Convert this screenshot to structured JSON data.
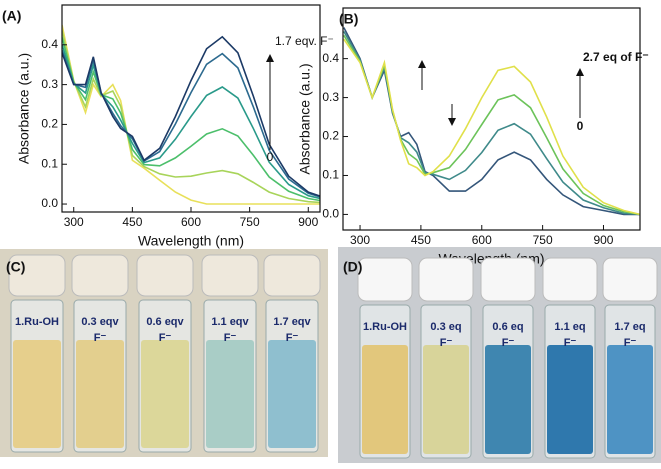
{
  "chart_data": [
    {
      "type": "line",
      "panel": "(A)",
      "xlabel": "Wavelength (nm)",
      "ylabel": "Absorbance (a.u.)",
      "x": [
        270,
        300,
        330,
        350,
        370,
        400,
        420,
        450,
        480,
        520,
        560,
        600,
        640,
        680,
        720,
        760,
        800,
        850,
        900,
        930
      ],
      "series": [
        {
          "color": "#e8e05a",
          "values": [
            0.45,
            0.31,
            0.23,
            0.3,
            0.27,
            0.3,
            0.26,
            0.11,
            0.09,
            0.06,
            0.03,
            0.01,
            0,
            0,
            0,
            0,
            0,
            0,
            0,
            0
          ]
        },
        {
          "color": "#a8d45a",
          "values": [
            0.436,
            0.308,
            0.244,
            0.314,
            0.272,
            0.284,
            0.246,
            0.122,
            0.094,
            0.076,
            0.068,
            0.07,
            0.078,
            0.084,
            0.076,
            0.054,
            0.03,
            0.014,
            0.006,
            0.004
          ]
        },
        {
          "color": "#4cbf6b",
          "values": [
            0.419,
            0.306,
            0.262,
            0.332,
            0.275,
            0.264,
            0.229,
            0.137,
            0.099,
            0.096,
            0.116,
            0.145,
            0.176,
            0.189,
            0.171,
            0.122,
            0.068,
            0.032,
            0.014,
            0.009
          ]
        },
        {
          "color": "#2a9a8a",
          "values": [
            0.401,
            0.303,
            0.279,
            0.349,
            0.277,
            0.244,
            0.211,
            0.152,
            0.104,
            0.116,
            0.163,
            0.22,
            0.273,
            0.294,
            0.266,
            0.189,
            0.105,
            0.049,
            0.021,
            0.014
          ]
        },
        {
          "color": "#2c6a8f",
          "values": [
            0.387,
            0.301,
            0.293,
            0.363,
            0.279,
            0.228,
            0.197,
            0.164,
            0.108,
            0.132,
            0.201,
            0.28,
            0.351,
            0.378,
            0.342,
            0.243,
            0.135,
            0.063,
            0.027,
            0.018
          ]
        },
        {
          "color": "#1c3a66",
          "values": [
            0.38,
            0.3,
            0.3,
            0.37,
            0.28,
            0.22,
            0.19,
            0.17,
            0.11,
            0.14,
            0.22,
            0.31,
            0.39,
            0.42,
            0.38,
            0.27,
            0.15,
            0.07,
            0.03,
            0.02
          ]
        }
      ],
      "xlim": [
        270,
        930
      ],
      "xticks": [
        300,
        450,
        600,
        750,
        900
      ],
      "ylim": [
        -0.02,
        0.5
      ],
      "yticks": [
        {
          "value": 0,
          "label": "0.0"
        },
        0.1,
        0.2,
        0.3,
        0.4
      ],
      "annotations": [
        "1.7 eqv. F⁻",
        "0"
      ]
    },
    {
      "type": "line",
      "panel": "(B)",
      "xlabel": "Wavelength (nm)",
      "ylabel": "Absorbance (a.u.)",
      "x": [
        260,
        300,
        330,
        360,
        380,
        400,
        420,
        440,
        460,
        480,
        520,
        560,
        600,
        640,
        680,
        720,
        760,
        800,
        850,
        900,
        950,
        990
      ],
      "series": [
        {
          "color": "#34567a",
          "values": [
            0.48,
            0.4,
            0.3,
            0.37,
            0.26,
            0.2,
            0.21,
            0.18,
            0.11,
            0.1,
            0.06,
            0.06,
            0.09,
            0.14,
            0.16,
            0.14,
            0.09,
            0.05,
            0.02,
            0.01,
            0,
            0
          ]
        },
        {
          "color": "#3f8a8a",
          "values": [
            0.47,
            0.397,
            0.3,
            0.377,
            0.263,
            0.197,
            0.184,
            0.16,
            0.107,
            0.103,
            0.09,
            0.113,
            0.159,
            0.216,
            0.233,
            0.206,
            0.143,
            0.083,
            0.037,
            0.017,
            0.003,
            0
          ]
        },
        {
          "color": "#6cc35a",
          "values": [
            0.46,
            0.393,
            0.3,
            0.383,
            0.267,
            0.193,
            0.156,
            0.14,
            0.103,
            0.107,
            0.12,
            0.167,
            0.231,
            0.294,
            0.307,
            0.274,
            0.197,
            0.117,
            0.054,
            0.023,
            0.007,
            0
          ]
        },
        {
          "color": "#e0e04a",
          "values": [
            0.45,
            0.39,
            0.3,
            0.39,
            0.27,
            0.19,
            0.13,
            0.12,
            0.1,
            0.11,
            0.15,
            0.22,
            0.3,
            0.37,
            0.38,
            0.34,
            0.25,
            0.15,
            0.07,
            0.03,
            0.01,
            0
          ]
        }
      ],
      "xlim": [
        258,
        990
      ],
      "xticks": [
        300,
        450,
        600,
        750,
        900
      ],
      "ylim": [
        -0.04,
        0.53
      ],
      "yticks": [
        {
          "value": 0,
          "label": "0.0"
        },
        0.1,
        0.2,
        0.3,
        0.4
      ],
      "annotations": [
        "2.7 eq of F⁻",
        "0"
      ]
    }
  ],
  "photos": [
    {
      "panel": "(C)",
      "vials": [
        [
          "1.Ru-OH"
        ],
        [
          "0.3 eqv",
          "F⁻"
        ],
        [
          "0.6 eqv",
          "F⁻"
        ],
        [
          "1.1 eqv",
          "F⁻"
        ],
        [
          "1.7 eqv",
          "F⁻"
        ]
      ]
    },
    {
      "panel": "(D)",
      "vials": [
        [
          "1.Ru-OH"
        ],
        [
          "0.3 eq",
          "F⁻"
        ],
        [
          "0.6 eq",
          "F⁻"
        ],
        [
          "1.1 eq",
          "F⁻"
        ],
        [
          "1.7 eq",
          "F⁻"
        ]
      ]
    }
  ]
}
